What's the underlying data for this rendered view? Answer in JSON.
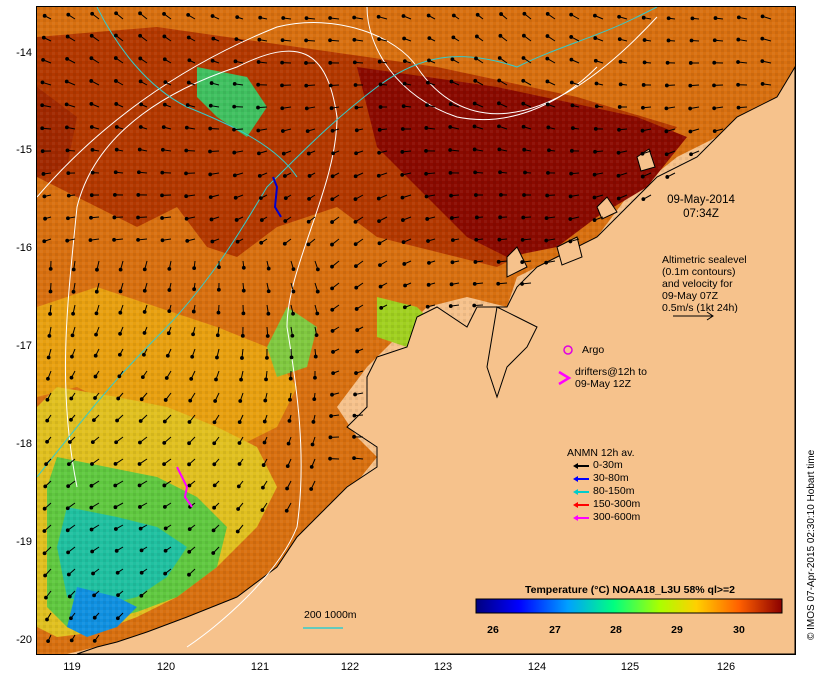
{
  "map": {
    "y_labels": [
      "-14",
      "-15",
      "-16",
      "-17",
      "-18",
      "-19",
      "-20"
    ],
    "x_labels": [
      "119",
      "120",
      "121",
      "122",
      "123",
      "124",
      "125",
      "126"
    ],
    "date": "09-May-2014",
    "time": "07:34Z",
    "altimetry_lines": [
      "Altimetric sealevel",
      "(0.1m contours)",
      "and velocity for",
      "09-May 07Z",
      "0.5m/s (1kt 24h)"
    ],
    "argo_label": "Argo",
    "drifters_lines": [
      "drifters@12h to",
      "09-May 12Z"
    ],
    "anmn_title": "ANMN 12h av.",
    "anmn_items": [
      {
        "label": "0-30m",
        "color": "#000000"
      },
      {
        "label": "30-80m",
        "color": "#0000ff"
      },
      {
        "label": "80-150m",
        "color": "#00cccc"
      },
      {
        "label": "150-300m",
        "color": "#ff0000"
      },
      {
        "label": "300-600m",
        "color": "#ff00ff"
      }
    ],
    "isobath_label": "200  1000m",
    "colorbar_title": "Temperature (°C) NOAA18_L3U 58% ql>=2",
    "colorbar_ticks": [
      "26",
      "27",
      "28",
      "29",
      "30"
    ],
    "credit": "© IMOS 07-Apr-2015 02:30:10 Hobart time",
    "colors": {
      "land": "#f6c28c",
      "argo": "#e000e0",
      "drifter": "#ff00ff",
      "contour": "#ffffff",
      "isobath": "#33cccc"
    }
  }
}
